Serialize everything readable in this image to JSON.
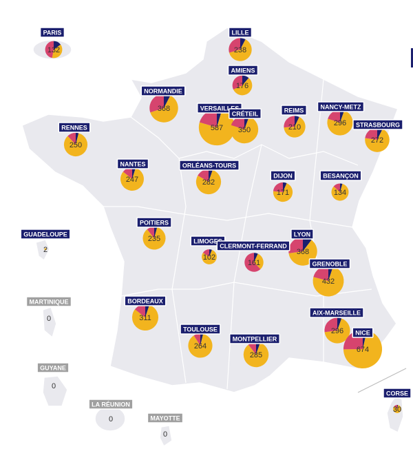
{
  "colors": [
    "#1b1f6e",
    "#f2b41e",
    "#d6446e"
  ],
  "academies": [
    {
      "label": "PARIS",
      "value": 132,
      "parts": [
        20,
        50,
        62
      ]
    },
    {
      "label": "LILLE",
      "value": 238,
      "parts": [
        18,
        150,
        70
      ]
    },
    {
      "label": "AMIENS",
      "value": 176,
      "parts": [
        20,
        100,
        56
      ]
    },
    {
      "label": "NORMANDIE",
      "value": 368,
      "parts": [
        28,
        230,
        110
      ]
    },
    {
      "label": "VERSAILLES",
      "value": 587,
      "parts": [
        27,
        440,
        120
      ]
    },
    {
      "label": "CRÉTEIL",
      "value": 350,
      "parts": [
        20,
        260,
        70
      ]
    },
    {
      "label": "REIMS",
      "value": 210,
      "parts": [
        15,
        140,
        55
      ]
    },
    {
      "label": "NANCY-METZ",
      "value": 296,
      "parts": [
        16,
        220,
        60
      ]
    },
    {
      "label": "STRASBOURG",
      "value": 272,
      "parts": [
        20,
        190,
        62
      ]
    },
    {
      "label": "RENNES",
      "value": 250,
      "parts": [
        10,
        210,
        30
      ]
    },
    {
      "label": "NANTES",
      "value": 247,
      "parts": [
        12,
        200,
        35
      ]
    },
    {
      "label": "ORLÉANS-TOURS",
      "value": 282,
      "parts": [
        15,
        220,
        47
      ]
    },
    {
      "label": "DIJON",
      "value": 171,
      "parts": [
        11,
        120,
        40
      ]
    },
    {
      "label": "BESANÇON",
      "value": 134,
      "parts": [
        6,
        110,
        18
      ]
    },
    {
      "label": "POITIERS",
      "value": 235,
      "parts": [
        10,
        200,
        25
      ]
    },
    {
      "label": "LIMOGES",
      "value": 102,
      "parts": [
        6,
        80,
        16
      ]
    },
    {
      "label": "CLERMONT-FERRAND",
      "value": 161,
      "parts": [
        11,
        50,
        100
      ]
    },
    {
      "label": "LYON",
      "value": 368,
      "parts": [
        38,
        230,
        100
      ]
    },
    {
      "label": "GRENOBLE",
      "value": 432,
      "parts": [
        22,
        320,
        90
      ]
    },
    {
      "label": "BORDEAUX",
      "value": 311,
      "parts": [
        16,
        250,
        45
      ]
    },
    {
      "label": "TOULOUSE",
      "value": 264,
      "parts": [
        10,
        230,
        24
      ]
    },
    {
      "label": "MONTPELLIER",
      "value": 285,
      "parts": [
        15,
        240,
        30
      ]
    },
    {
      "label": "AIX-MARSEILLE",
      "value": 296,
      "parts": [
        16,
        200,
        80
      ]
    },
    {
      "label": "NICE",
      "value": 674,
      "parts": [
        24,
        480,
        170
      ]
    },
    {
      "label": "CORSE",
      "value": 30,
      "parts": [
        1,
        25,
        4
      ]
    },
    {
      "label": "GUADELOUPE",
      "value": 2,
      "parts": [
        0,
        2,
        0
      ]
    },
    {
      "label": "MARTINIQUE",
      "value": 0,
      "parts": [
        0,
        0,
        0
      ]
    },
    {
      "label": "GUYANE",
      "value": 0,
      "parts": [
        0,
        0,
        0
      ]
    },
    {
      "label": "LA RÉUNION",
      "value": 0,
      "parts": [
        0,
        0,
        0
      ]
    },
    {
      "label": "MAYOTTE",
      "value": 0,
      "parts": [
        0,
        0,
        0
      ]
    }
  ]
}
